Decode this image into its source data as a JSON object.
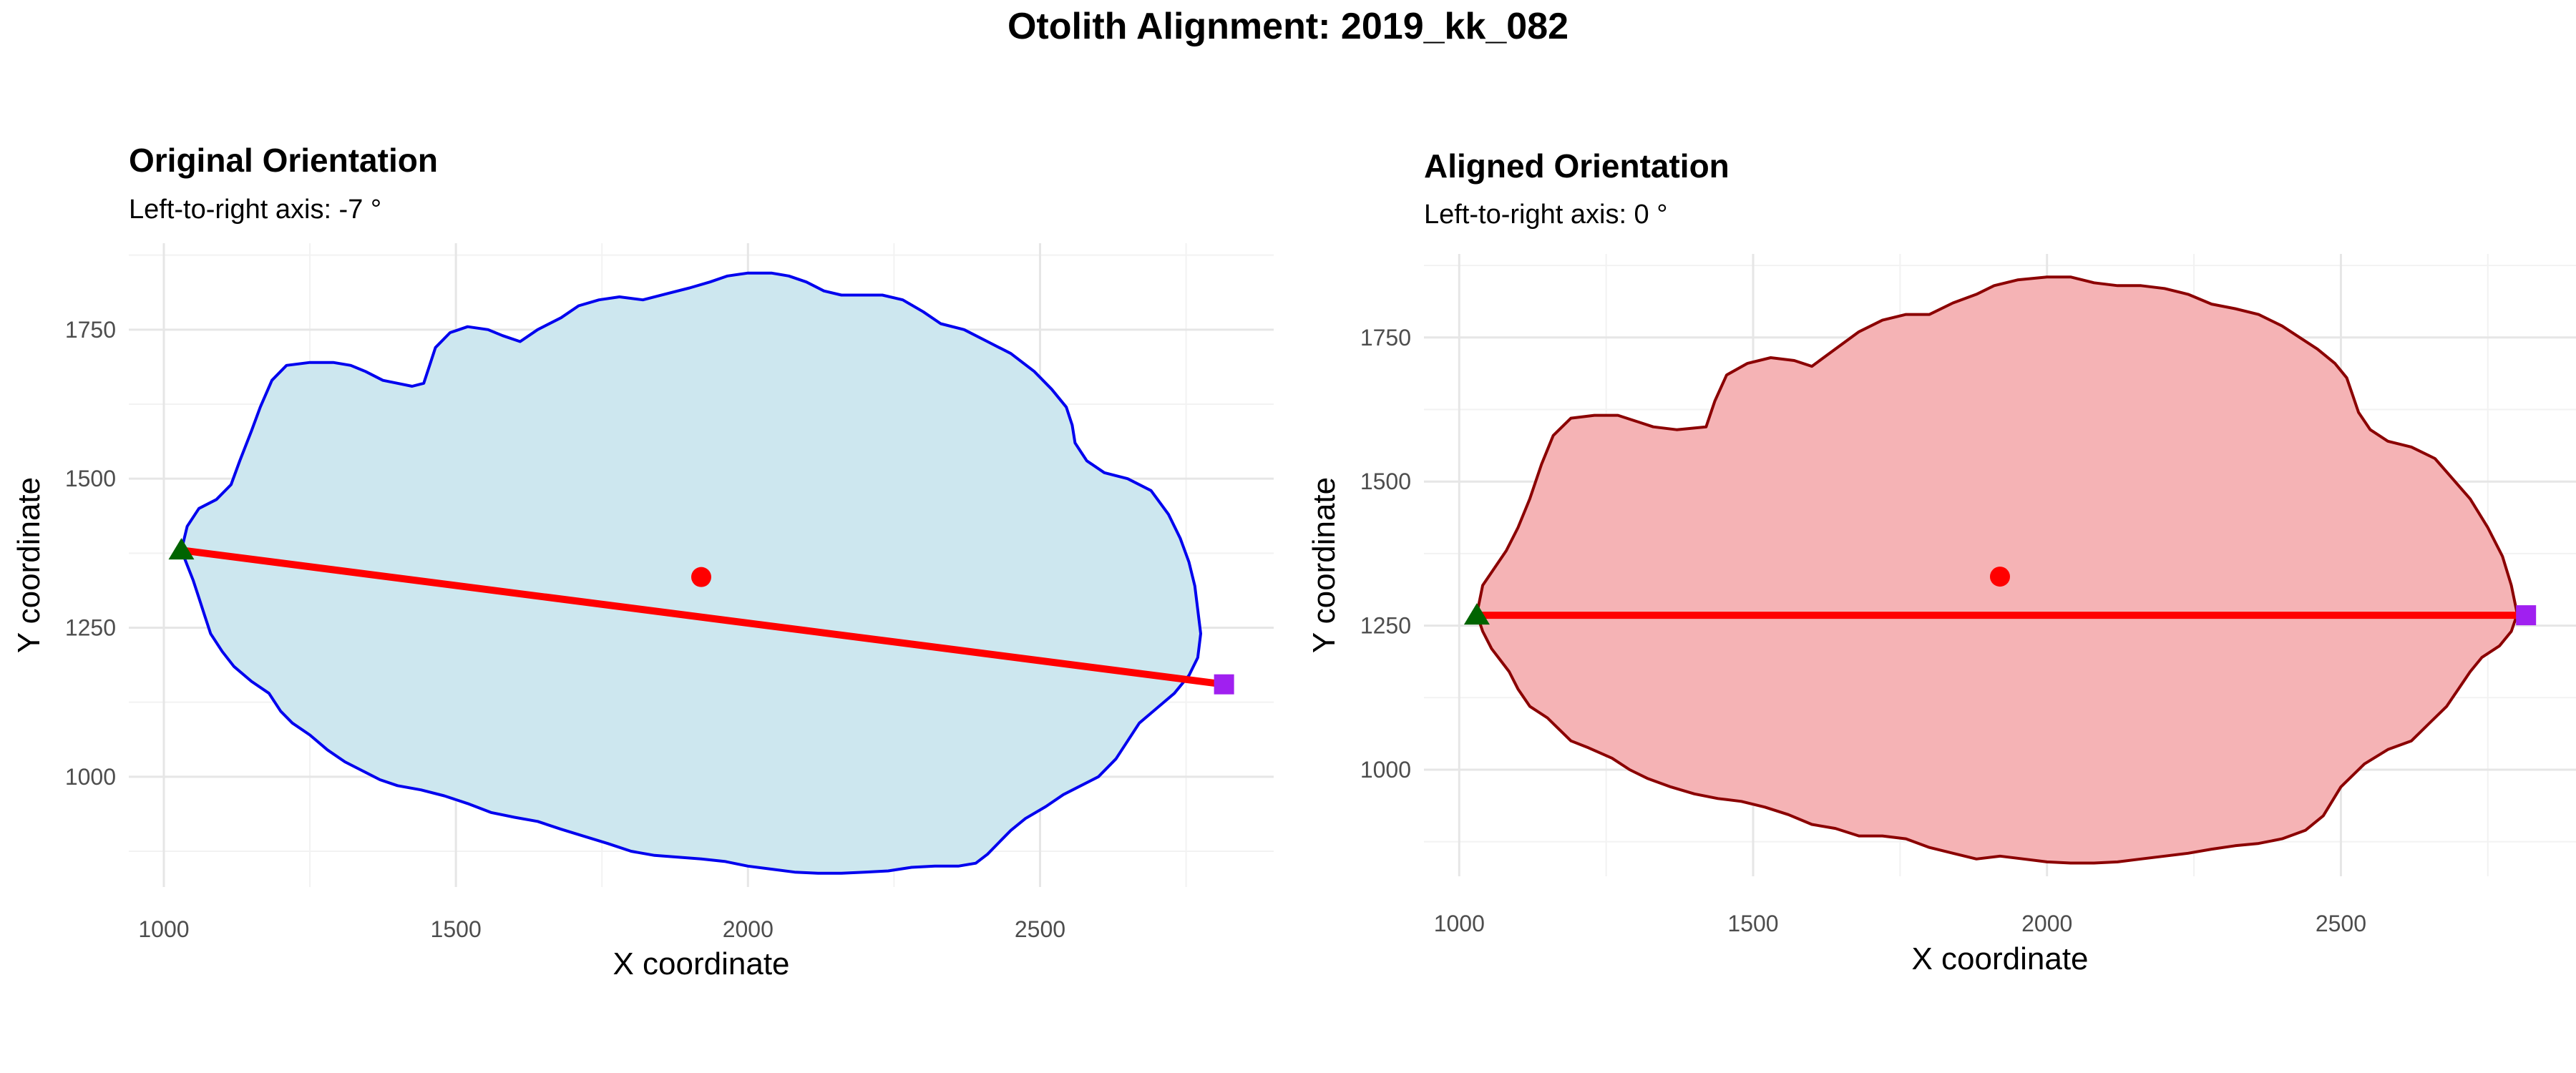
{
  "title": "Otolith Alignment: 2019_kk_082",
  "chart_data": [
    {
      "type": "scatter",
      "title": "Original Orientation",
      "subtitle": "Left-to-right axis: -7 °",
      "xlabel": "X coordinate",
      "ylabel": "Y coordinate",
      "xlim": [
        940,
        2900
      ],
      "ylim": [
        815,
        1895
      ],
      "xticks": [
        1000,
        1500,
        2000,
        2500
      ],
      "yticks": [
        1000,
        1250,
        1500,
        1750
      ],
      "grid": true,
      "fill_color": "#cde7ef",
      "outline_color": "#0000ee",
      "axis_line_color": "#ff0000",
      "outline": [
        [
          1030,
          1380
        ],
        [
          1040,
          1420
        ],
        [
          1060,
          1450
        ],
        [
          1090,
          1465
        ],
        [
          1115,
          1490
        ],
        [
          1130,
          1530
        ],
        [
          1150,
          1580
        ],
        [
          1165,
          1620
        ],
        [
          1185,
          1665
        ],
        [
          1210,
          1690
        ],
        [
          1250,
          1695
        ],
        [
          1290,
          1695
        ],
        [
          1320,
          1690
        ],
        [
          1345,
          1680
        ],
        [
          1375,
          1665
        ],
        [
          1400,
          1660
        ],
        [
          1425,
          1655
        ],
        [
          1445,
          1660
        ],
        [
          1465,
          1720
        ],
        [
          1490,
          1745
        ],
        [
          1520,
          1755
        ],
        [
          1555,
          1750
        ],
        [
          1580,
          1740
        ],
        [
          1610,
          1730
        ],
        [
          1640,
          1750
        ],
        [
          1680,
          1770
        ],
        [
          1710,
          1790
        ],
        [
          1745,
          1800
        ],
        [
          1780,
          1805
        ],
        [
          1820,
          1800
        ],
        [
          1860,
          1810
        ],
        [
          1900,
          1820
        ],
        [
          1935,
          1830
        ],
        [
          1965,
          1840
        ],
        [
          2000,
          1845
        ],
        [
          2040,
          1845
        ],
        [
          2070,
          1840
        ],
        [
          2100,
          1830
        ],
        [
          2130,
          1815
        ],
        [
          2160,
          1808
        ],
        [
          2190,
          1808
        ],
        [
          2230,
          1808
        ],
        [
          2265,
          1800
        ],
        [
          2300,
          1780
        ],
        [
          2330,
          1760
        ],
        [
          2370,
          1750
        ],
        [
          2410,
          1730
        ],
        [
          2450,
          1710
        ],
        [
          2490,
          1680
        ],
        [
          2520,
          1650
        ],
        [
          2545,
          1620
        ],
        [
          2555,
          1590
        ],
        [
          2560,
          1560
        ],
        [
          2580,
          1530
        ],
        [
          2610,
          1510
        ],
        [
          2650,
          1500
        ],
        [
          2690,
          1480
        ],
        [
          2720,
          1440
        ],
        [
          2740,
          1400
        ],
        [
          2755,
          1360
        ],
        [
          2765,
          1320
        ],
        [
          2770,
          1280
        ],
        [
          2775,
          1240
        ],
        [
          2770,
          1200
        ],
        [
          2755,
          1170
        ],
        [
          2730,
          1140
        ],
        [
          2700,
          1115
        ],
        [
          2670,
          1090
        ],
        [
          2650,
          1060
        ],
        [
          2630,
          1030
        ],
        [
          2600,
          1000
        ],
        [
          2570,
          985
        ],
        [
          2540,
          970
        ],
        [
          2510,
          950
        ],
        [
          2475,
          930
        ],
        [
          2450,
          910
        ],
        [
          2430,
          890
        ],
        [
          2410,
          870
        ],
        [
          2390,
          855
        ],
        [
          2360,
          850
        ],
        [
          2320,
          850
        ],
        [
          2280,
          848
        ],
        [
          2240,
          842
        ],
        [
          2200,
          840
        ],
        [
          2160,
          838
        ],
        [
          2120,
          838
        ],
        [
          2080,
          840
        ],
        [
          2040,
          845
        ],
        [
          2000,
          850
        ],
        [
          1960,
          858
        ],
        [
          1920,
          862
        ],
        [
          1880,
          865
        ],
        [
          1840,
          868
        ],
        [
          1800,
          875
        ],
        [
          1760,
          888
        ],
        [
          1720,
          900
        ],
        [
          1680,
          912
        ],
        [
          1640,
          925
        ],
        [
          1600,
          932
        ],
        [
          1560,
          940
        ],
        [
          1520,
          955
        ],
        [
          1480,
          968
        ],
        [
          1440,
          978
        ],
        [
          1400,
          985
        ],
        [
          1370,
          995
        ],
        [
          1340,
          1010
        ],
        [
          1310,
          1025
        ],
        [
          1280,
          1045
        ],
        [
          1250,
          1070
        ],
        [
          1220,
          1090
        ],
        [
          1200,
          1110
        ],
        [
          1180,
          1140
        ],
        [
          1150,
          1160
        ],
        [
          1120,
          1185
        ],
        [
          1100,
          1210
        ],
        [
          1080,
          1240
        ],
        [
          1070,
          1270
        ],
        [
          1060,
          1300
        ],
        [
          1050,
          1330
        ],
        [
          1040,
          1355
        ]
      ],
      "center": [
        1920,
        1335
      ],
      "axis_start": [
        1030,
        1380
      ],
      "axis_end": [
        2815,
        1155
      ],
      "center_color": "#ff0000",
      "start_marker_color": "#006400",
      "end_marker_color": "#a020f0"
    },
    {
      "type": "scatter",
      "title": "Aligned Orientation",
      "subtitle": "Left-to-right axis: 0 °",
      "xlabel": "X coordinate",
      "ylabel": "Y coordinate",
      "xlim": [
        940,
        2900
      ],
      "ylim": [
        815,
        1895
      ],
      "xticks": [
        1000,
        1500,
        2000,
        2500
      ],
      "yticks": [
        1000,
        1250,
        1500,
        1750
      ],
      "grid": true,
      "fill_color": "#f5b3b5",
      "outline_color": "#8b0000",
      "axis_line_color": "#ff0000",
      "outline": [
        [
          1030,
          1270
        ],
        [
          1040,
          1320
        ],
        [
          1060,
          1350
        ],
        [
          1080,
          1380
        ],
        [
          1100,
          1420
        ],
        [
          1120,
          1470
        ],
        [
          1140,
          1530
        ],
        [
          1160,
          1580
        ],
        [
          1190,
          1610
        ],
        [
          1230,
          1615
        ],
        [
          1270,
          1615
        ],
        [
          1300,
          1605
        ],
        [
          1330,
          1595
        ],
        [
          1370,
          1590
        ],
        [
          1420,
          1595
        ],
        [
          1435,
          1640
        ],
        [
          1455,
          1685
        ],
        [
          1490,
          1705
        ],
        [
          1530,
          1715
        ],
        [
          1570,
          1710
        ],
        [
          1600,
          1700
        ],
        [
          1640,
          1730
        ],
        [
          1680,
          1760
        ],
        [
          1720,
          1780
        ],
        [
          1760,
          1790
        ],
        [
          1800,
          1790
        ],
        [
          1840,
          1810
        ],
        [
          1880,
          1825
        ],
        [
          1910,
          1840
        ],
        [
          1950,
          1850
        ],
        [
          2000,
          1855
        ],
        [
          2040,
          1855
        ],
        [
          2080,
          1845
        ],
        [
          2120,
          1840
        ],
        [
          2160,
          1840
        ],
        [
          2200,
          1835
        ],
        [
          2240,
          1825
        ],
        [
          2280,
          1808
        ],
        [
          2320,
          1800
        ],
        [
          2360,
          1790
        ],
        [
          2400,
          1770
        ],
        [
          2430,
          1750
        ],
        [
          2460,
          1730
        ],
        [
          2490,
          1705
        ],
        [
          2510,
          1680
        ],
        [
          2520,
          1650
        ],
        [
          2530,
          1620
        ],
        [
          2550,
          1590
        ],
        [
          2580,
          1570
        ],
        [
          2620,
          1560
        ],
        [
          2660,
          1540
        ],
        [
          2690,
          1505
        ],
        [
          2720,
          1470
        ],
        [
          2750,
          1420
        ],
        [
          2775,
          1370
        ],
        [
          2790,
          1320
        ],
        [
          2800,
          1270
        ],
        [
          2790,
          1240
        ],
        [
          2770,
          1215
        ],
        [
          2740,
          1195
        ],
        [
          2720,
          1170
        ],
        [
          2700,
          1140
        ],
        [
          2680,
          1110
        ],
        [
          2650,
          1080
        ],
        [
          2620,
          1050
        ],
        [
          2580,
          1035
        ],
        [
          2540,
          1010
        ],
        [
          2500,
          970
        ],
        [
          2470,
          920
        ],
        [
          2440,
          895
        ],
        [
          2400,
          880
        ],
        [
          2360,
          872
        ],
        [
          2320,
          868
        ],
        [
          2280,
          862
        ],
        [
          2240,
          855
        ],
        [
          2200,
          850
        ],
        [
          2160,
          845
        ],
        [
          2120,
          840
        ],
        [
          2080,
          838
        ],
        [
          2040,
          838
        ],
        [
          2000,
          840
        ],
        [
          1960,
          845
        ],
        [
          1920,
          850
        ],
        [
          1880,
          845
        ],
        [
          1840,
          855
        ],
        [
          1800,
          865
        ],
        [
          1760,
          880
        ],
        [
          1720,
          885
        ],
        [
          1680,
          885
        ],
        [
          1640,
          898
        ],
        [
          1600,
          905
        ],
        [
          1560,
          922
        ],
        [
          1520,
          935
        ],
        [
          1480,
          945
        ],
        [
          1440,
          950
        ],
        [
          1400,
          958
        ],
        [
          1360,
          970
        ],
        [
          1320,
          985
        ],
        [
          1290,
          1000
        ],
        [
          1260,
          1020
        ],
        [
          1220,
          1038
        ],
        [
          1190,
          1050
        ],
        [
          1170,
          1070
        ],
        [
          1150,
          1090
        ],
        [
          1120,
          1110
        ],
        [
          1100,
          1140
        ],
        [
          1085,
          1170
        ],
        [
          1070,
          1190
        ],
        [
          1055,
          1210
        ],
        [
          1040,
          1240
        ]
      ],
      "center": [
        1920,
        1335
      ],
      "axis_start": [
        1030,
        1268
      ],
      "axis_end": [
        2815,
        1268
      ],
      "center_color": "#ff0000",
      "start_marker_color": "#006400",
      "end_marker_color": "#a020f0"
    }
  ]
}
